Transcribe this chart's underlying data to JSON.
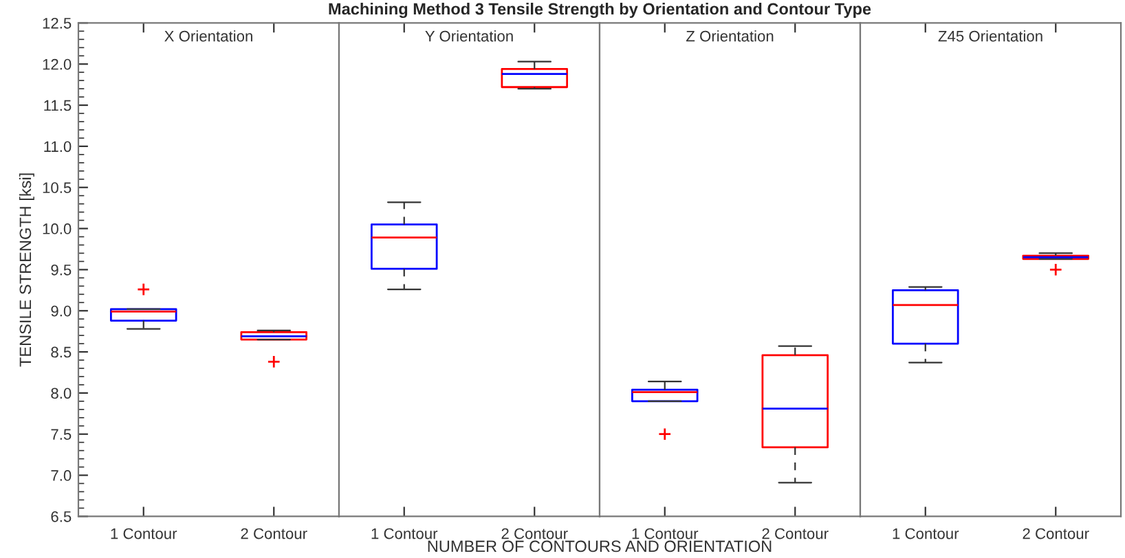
{
  "chart_data": [
    {
      "type": "box",
      "ylabel": "TENSILE STRENGTH [ksi]",
      "annotations": [
        "X Orientation"
      ],
      "categories": [
        "1 Contour",
        "2 Contour"
      ],
      "ylim": [
        6.5,
        12.5
      ],
      "yticks": [
        6.5,
        {
          "value": 7,
          "label": "7.0"
        },
        7.5,
        {
          "value": 8,
          "label": "8.0"
        },
        8.5,
        {
          "value": 9,
          "label": "9.0"
        },
        9.5,
        {
          "value": 10,
          "label": "10.0"
        },
        10.5,
        {
          "value": 11,
          "label": "11.0"
        },
        11.5,
        {
          "value": 12,
          "label": "12.0"
        },
        12.5
      ],
      "series": [
        {
          "color": "#0000ff",
          "boxes": [
            {
              "low": 8.78,
              "q1": 8.88,
              "median": 8.99,
              "q3": 9.02,
              "high": 9.02,
              "outliers": [
                9.26
              ]
            },
            null
          ]
        },
        {
          "color": "#ff0000",
          "boxes": [
            null,
            {
              "low": 8.65,
              "q1": 8.65,
              "median": 8.69,
              "q3": 8.74,
              "high": 8.76,
              "outliers": [
                8.38
              ]
            }
          ]
        }
      ]
    },
    {
      "type": "box",
      "title": "Machining Method 3 Tensile Strength by Orientation and Contour Type",
      "xlabel": "NUMBER OF CONTOURS AND ORIENTATION",
      "annotations": [
        "Y Orientation"
      ],
      "categories": [
        "1 Contour",
        "2 Contour"
      ],
      "ylim": [
        6.5,
        12.5
      ],
      "tick_labels": "x",
      "series": [
        {
          "color": "#0000ff",
          "boxes": [
            {
              "low": 9.26,
              "q1": 9.51,
              "median": 9.89,
              "q3": 10.05,
              "high": 10.32
            },
            null
          ]
        },
        {
          "color": "#ff0000",
          "boxes": [
            null,
            {
              "low": 11.7,
              "q1": 11.72,
              "median": 11.88,
              "q3": 11.94,
              "high": 12.03
            }
          ]
        }
      ]
    },
    {
      "type": "box",
      "annotations": [
        "Z Orientation"
      ],
      "categories": [
        "1 Contour",
        "2 Contour"
      ],
      "ylim": [
        6.5,
        12.5
      ],
      "tick_labels": "x",
      "series": [
        {
          "color": "#0000ff",
          "boxes": [
            {
              "low": 7.9,
              "q1": 7.9,
              "median": 8.01,
              "q3": 8.04,
              "high": 8.14,
              "outliers": [
                7.5
              ]
            },
            null
          ]
        },
        {
          "color": "#ff0000",
          "boxes": [
            null,
            {
              "low": 6.91,
              "q1": 7.34,
              "median": 7.81,
              "q3": 8.46,
              "high": 8.57
            }
          ]
        }
      ]
    },
    {
      "type": "box",
      "annotations": [
        "Z45 Orientation"
      ],
      "categories": [
        "1 Contour",
        "2 Contour"
      ],
      "ylim": [
        6.5,
        12.5
      ],
      "tick_labels": "x",
      "series": [
        {
          "color": "#0000ff",
          "boxes": [
            {
              "low": 8.37,
              "q1": 8.6,
              "median": 9.07,
              "q3": 9.25,
              "high": 9.29
            },
            null
          ]
        },
        {
          "color": "#ff0000",
          "boxes": [
            null,
            {
              "low": 9.63,
              "q1": 9.63,
              "median": 9.65,
              "q3": 9.67,
              "high": 9.7,
              "outliers": [
                9.5
              ]
            }
          ]
        }
      ]
    }
  ]
}
